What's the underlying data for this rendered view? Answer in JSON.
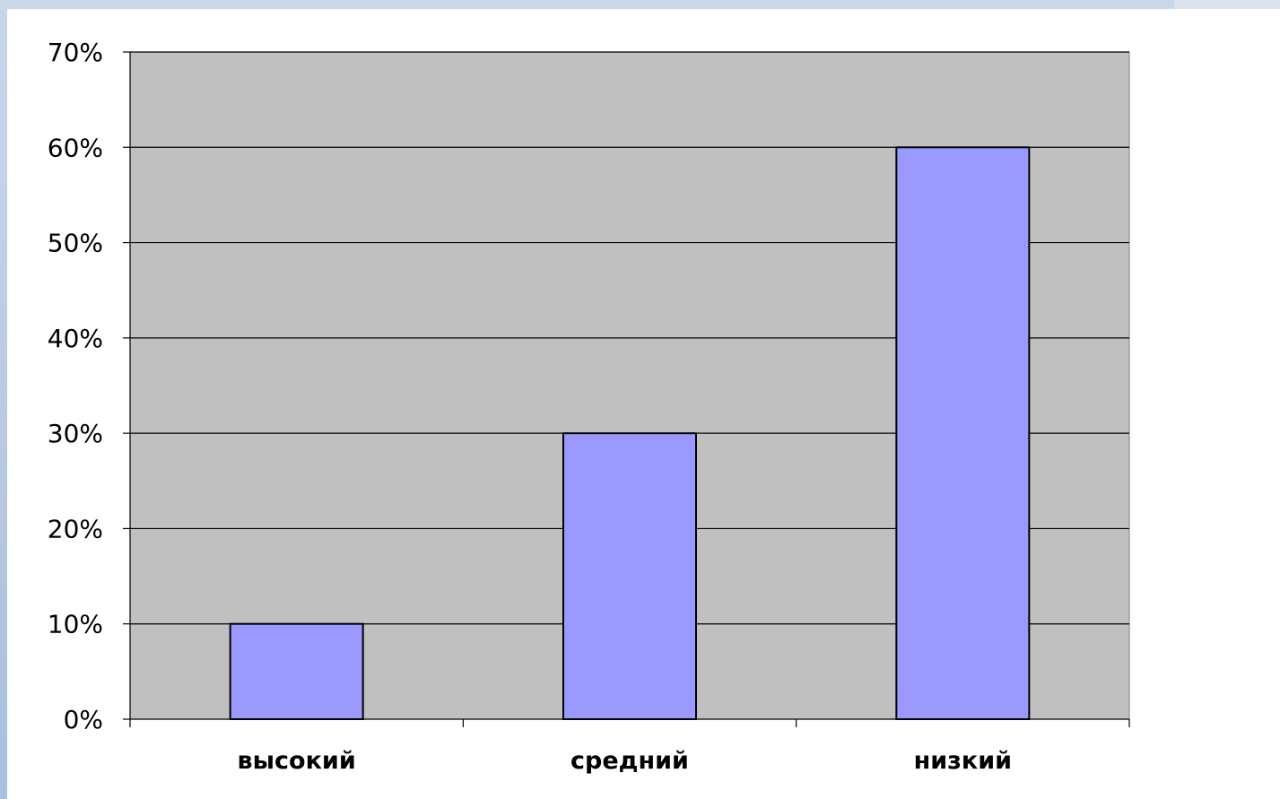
{
  "chart_data": {
    "type": "bar",
    "categories": [
      "высокий",
      "средний",
      "низкий"
    ],
    "values": [
      10,
      30,
      60
    ],
    "y_tick_labels": [
      "0%",
      "10%",
      "20%",
      "30%",
      "40%",
      "50%",
      "60%",
      "70%"
    ],
    "ylim": [
      0,
      70
    ],
    "y_unit": "%",
    "grid": true,
    "legend": "none",
    "colors": {
      "bar_fill": "#9999ff",
      "bar_stroke": "#000000",
      "plot_bg": "#c0c0c0",
      "gridline": "#000000"
    }
  }
}
